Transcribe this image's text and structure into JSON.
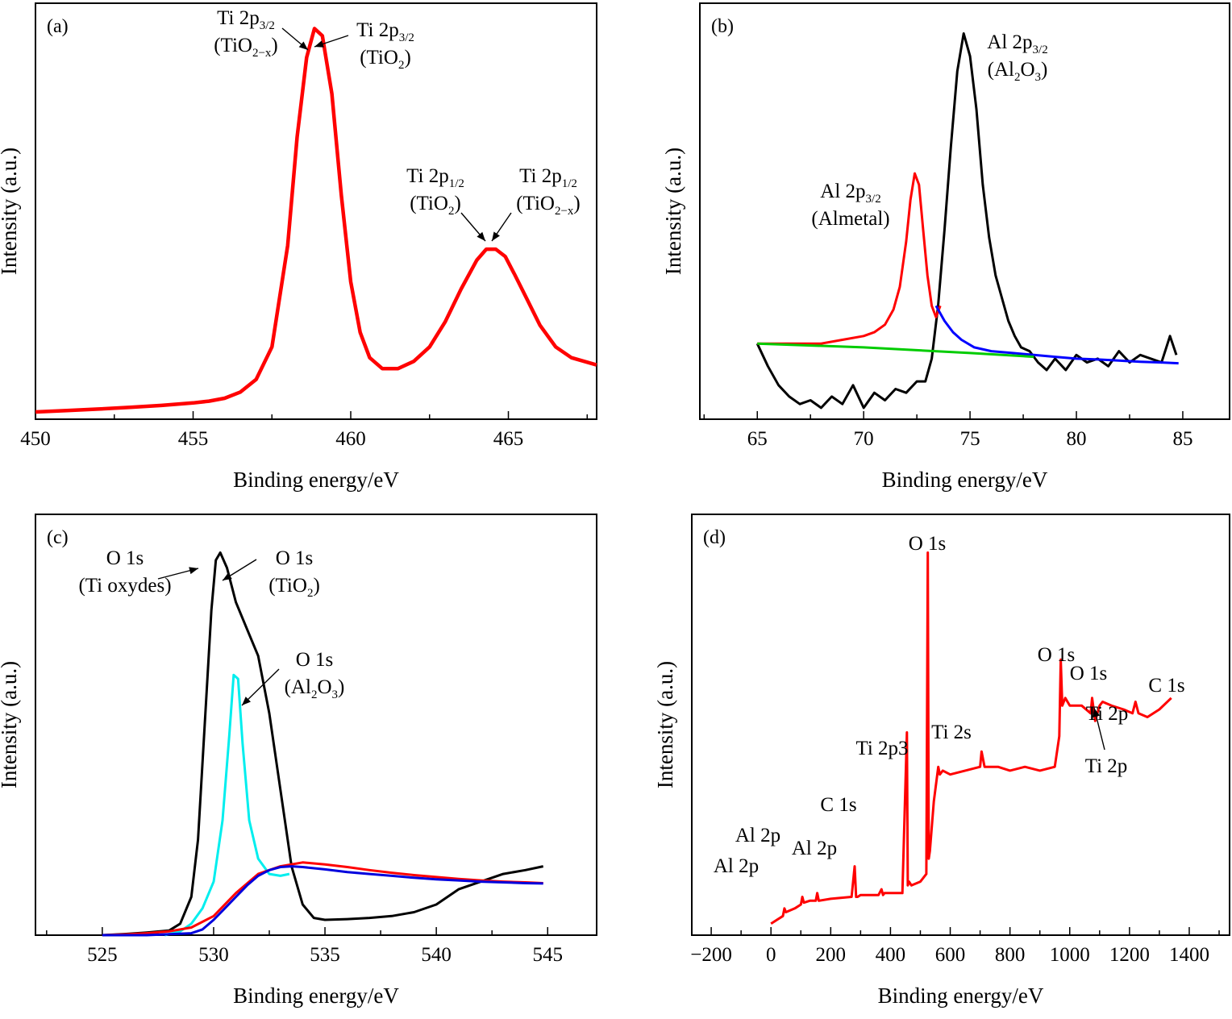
{
  "chart_data": [
    {
      "id": "a",
      "panel_label": "(a)",
      "type": "line",
      "xlabel": "Binding energy/eV",
      "ylabel": "Intensity (a.u.)",
      "xlim": [
        450,
        467.8
      ],
      "ylim": [
        0,
        1.15
      ],
      "xticks": [
        450,
        455,
        460,
        465
      ],
      "series": [
        {
          "color": "#ff0000",
          "x": [
            450,
            451,
            452,
            453,
            454,
            455,
            455.5,
            456,
            456.5,
            457,
            457.5,
            458,
            458.3,
            458.6,
            458.85,
            459.1,
            459.4,
            459.7,
            460,
            460.3,
            460.6,
            461,
            461.5,
            462,
            462.5,
            463,
            463.5,
            464,
            464.3,
            464.6,
            464.9,
            465.2,
            465.6,
            466,
            466.5,
            467,
            467.8
          ],
          "y": [
            0.02,
            0.024,
            0.028,
            0.033,
            0.038,
            0.045,
            0.05,
            0.058,
            0.075,
            0.11,
            0.2,
            0.48,
            0.78,
            1.0,
            1.08,
            1.06,
            0.9,
            0.62,
            0.38,
            0.24,
            0.17,
            0.14,
            0.14,
            0.16,
            0.2,
            0.27,
            0.36,
            0.44,
            0.47,
            0.47,
            0.45,
            0.4,
            0.33,
            0.26,
            0.2,
            0.17,
            0.15
          ]
        }
      ],
      "annotations": [
        {
          "main": "Ti 2p",
          "sub": "3/2",
          "line2": "(TiO",
          "line2_sub": "2−x",
          "line2_end": ")",
          "x": 458.75,
          "y": 1.08
        },
        {
          "main": "Ti 2p",
          "sub": "3/2",
          "line2": "(TiO",
          "line2_sub": "2",
          "line2_end": ")",
          "x": 459.0,
          "y": 1.07
        },
        {
          "main": "Ti 2p",
          "sub": "1/2",
          "line2": "(TiO",
          "line2_sub": "2",
          "line2_end": ")",
          "x": 464.55,
          "y": 0.47
        },
        {
          "main": "Ti 2p",
          "sub": "1/2",
          "line2": "(TiO",
          "line2_sub": "2−x",
          "line2_end": ")",
          "x": 464.75,
          "y": 0.465
        }
      ]
    },
    {
      "id": "b",
      "panel_label": "(b)",
      "type": "line",
      "xlabel": "Binding energy/eV",
      "ylabel": "Intensity (a.u.)",
      "xlim": [
        62.3,
        87.2
      ],
      "ylim": [
        0,
        1.1
      ],
      "xticks": [
        65,
        70,
        75,
        80,
        85
      ],
      "series": [
        {
          "color": "#000000",
          "x": [
            65,
            65.5,
            66,
            66.5,
            67,
            67.5,
            68,
            68.5,
            69,
            69.5,
            70,
            70.5,
            71,
            71.5,
            72,
            72.5,
            72.9,
            73.2,
            73.5,
            73.8,
            74.1,
            74.4,
            74.7,
            75.0,
            75.3,
            75.6,
            75.9,
            76.2,
            76.5,
            76.8,
            77.1,
            77.4,
            77.8,
            78.2,
            78.6,
            79,
            79.5,
            80,
            80.5,
            81,
            81.5,
            82,
            82.5,
            83,
            83.5,
            84,
            84.4,
            84.7
          ],
          "y": [
            0.2,
            0.14,
            0.09,
            0.06,
            0.04,
            0.05,
            0.03,
            0.06,
            0.04,
            0.09,
            0.03,
            0.07,
            0.05,
            0.08,
            0.07,
            0.1,
            0.1,
            0.16,
            0.3,
            0.5,
            0.72,
            0.92,
            1.02,
            0.96,
            0.82,
            0.62,
            0.48,
            0.38,
            0.32,
            0.26,
            0.22,
            0.19,
            0.18,
            0.15,
            0.13,
            0.16,
            0.13,
            0.17,
            0.15,
            0.16,
            0.14,
            0.18,
            0.15,
            0.17,
            0.16,
            0.15,
            0.22,
            0.17
          ]
        },
        {
          "color": "#ff0000",
          "x": [
            65,
            66,
            67,
            68,
            69,
            70,
            70.5,
            71,
            71.4,
            71.7,
            72,
            72.2,
            72.4,
            72.6,
            72.8,
            73,
            73.2,
            73.4,
            73.6
          ],
          "y": [
            0.2,
            0.2,
            0.2,
            0.2,
            0.21,
            0.22,
            0.23,
            0.25,
            0.29,
            0.35,
            0.47,
            0.58,
            0.65,
            0.62,
            0.5,
            0.38,
            0.3,
            0.27,
            0.3
          ]
        },
        {
          "color": "#0000ff",
          "x": [
            73.4,
            73.8,
            74.2,
            74.6,
            75.2,
            76,
            77,
            78,
            79,
            80,
            81,
            82,
            83,
            84,
            84.8
          ],
          "y": [
            0.3,
            0.26,
            0.23,
            0.21,
            0.19,
            0.18,
            0.175,
            0.17,
            0.165,
            0.16,
            0.158,
            0.155,
            0.152,
            0.15,
            0.148
          ]
        },
        {
          "color": "#00cc00",
          "x": [
            65,
            70,
            75,
            78
          ],
          "y": [
            0.2,
            0.19,
            0.175,
            0.165
          ]
        }
      ],
      "annotations": [
        {
          "main": "Al 2p",
          "sub": "3/2",
          "line2": "(Al",
          "line2_sub": "2",
          "line2_mid": "O",
          "line2_sub2": "3",
          "line2_end": ")"
        },
        {
          "main": "Al 2p",
          "sub": "3/2",
          "line2": "(Almetal)"
        }
      ]
    },
    {
      "id": "c",
      "panel_label": "(c)",
      "type": "line",
      "xlabel": "Binding energy/eV",
      "ylabel": "Intensity (a.u.)",
      "xlim": [
        522,
        547.2
      ],
      "ylim": [
        0,
        1.1
      ],
      "xticks": [
        525,
        530,
        535,
        540,
        545
      ],
      "series": [
        {
          "color": "#000000",
          "x": [
            525,
            526,
            527,
            528,
            528.5,
            529,
            529.3,
            529.6,
            529.9,
            530.1,
            530.3,
            530.6,
            531,
            531.5,
            532,
            532.5,
            533,
            533.5,
            534,
            534.5,
            535,
            536,
            537,
            538,
            539,
            540,
            541,
            542,
            543,
            544,
            544.8
          ],
          "y": [
            0.0,
            0.003,
            0.007,
            0.012,
            0.03,
            0.1,
            0.25,
            0.55,
            0.85,
            0.98,
            1.0,
            0.96,
            0.87,
            0.8,
            0.73,
            0.58,
            0.38,
            0.18,
            0.08,
            0.045,
            0.04,
            0.042,
            0.045,
            0.05,
            0.06,
            0.08,
            0.12,
            0.14,
            0.16,
            0.17,
            0.18
          ]
        },
        {
          "color": "#00eeee",
          "x": [
            527.8,
            528.5,
            529,
            529.5,
            530,
            530.4,
            530.7,
            530.9,
            531.1,
            531.3,
            531.6,
            532,
            532.5,
            533,
            533.4
          ],
          "y": [
            0.0,
            0.01,
            0.03,
            0.07,
            0.14,
            0.3,
            0.52,
            0.68,
            0.67,
            0.5,
            0.3,
            0.2,
            0.16,
            0.155,
            0.16
          ]
        },
        {
          "color": "#ff0000",
          "x": [
            525,
            526,
            527,
            528,
            529,
            530,
            531,
            532,
            533,
            534,
            535,
            536,
            537,
            538,
            539,
            540,
            541,
            542,
            543,
            544,
            544.8
          ],
          "y": [
            0.0,
            0.002,
            0.005,
            0.01,
            0.02,
            0.05,
            0.11,
            0.16,
            0.18,
            0.19,
            0.185,
            0.178,
            0.17,
            0.163,
            0.157,
            0.152,
            0.147,
            0.143,
            0.14,
            0.138,
            0.136
          ]
        },
        {
          "color": "#0000dd",
          "x": [
            525,
            527,
            529,
            529.5,
            530,
            530.5,
            531,
            531.5,
            532,
            532.5,
            533,
            533.5,
            534,
            535,
            536,
            537,
            538,
            539,
            540,
            541,
            542,
            543,
            544,
            544.8
          ],
          "y": [
            0.0,
            0.0,
            0.005,
            0.015,
            0.04,
            0.07,
            0.1,
            0.13,
            0.155,
            0.17,
            0.178,
            0.18,
            0.178,
            0.172,
            0.165,
            0.16,
            0.155,
            0.15,
            0.146,
            0.143,
            0.14,
            0.138,
            0.136,
            0.135
          ]
        }
      ],
      "annotations": [
        {
          "main": "O 1s",
          "line2": "(Ti oxydes)"
        },
        {
          "main": "O 1s",
          "line2": "(TiO",
          "line2_sub": "2",
          "line2_end": ")"
        },
        {
          "main": "O 1s",
          "line2": "(Al",
          "line2_sub": "2",
          "line2_mid": "O",
          "line2_sub2": "3",
          "line2_end": ")"
        }
      ]
    },
    {
      "id": "d",
      "panel_label": "(d)",
      "type": "line",
      "xlabel": "Binding energy/eV",
      "ylabel": "Intensity (a.u.)",
      "xlim": [
        -265,
        1535
      ],
      "ylim": [
        0,
        1.1
      ],
      "xticks": [
        -200,
        0,
        200,
        400,
        600,
        800,
        1000,
        1200,
        1400
      ],
      "series": [
        {
          "color": "#ff0000",
          "x": [
            0,
            20,
            40,
            45,
            50,
            80,
            100,
            105,
            110,
            130,
            150,
            155,
            160,
            200,
            270,
            280,
            285,
            290,
            300,
            360,
            370,
            375,
            380,
            440,
            455,
            458,
            462,
            470,
            500,
            520,
            525,
            528,
            532,
            545,
            560,
            565,
            575,
            600,
            650,
            700,
            705,
            715,
            760,
            800,
            850,
            900,
            950,
            965,
            970,
            975,
            985,
            1000,
            1040,
            1070,
            1075,
            1085,
            1100,
            1110,
            1140,
            1180,
            1210,
            1220,
            1230,
            1260,
            1300,
            1340
          ],
          "y": [
            0.03,
            0.04,
            0.05,
            0.07,
            0.06,
            0.07,
            0.08,
            0.1,
            0.085,
            0.09,
            0.09,
            0.11,
            0.09,
            0.095,
            0.1,
            0.18,
            0.1,
            0.1,
            0.105,
            0.105,
            0.12,
            0.105,
            0.11,
            0.11,
            0.53,
            0.13,
            0.14,
            0.13,
            0.14,
            0.16,
            1.0,
            0.2,
            0.22,
            0.35,
            0.44,
            0.42,
            0.43,
            0.42,
            0.43,
            0.44,
            0.48,
            0.44,
            0.44,
            0.43,
            0.44,
            0.43,
            0.44,
            0.52,
            0.72,
            0.6,
            0.62,
            0.6,
            0.6,
            0.58,
            0.62,
            0.56,
            0.6,
            0.61,
            0.6,
            0.59,
            0.58,
            0.61,
            0.58,
            0.57,
            0.59,
            0.62
          ]
        }
      ],
      "annotations": [
        {
          "main": "O 1s"
        },
        {
          "main": "O 1s"
        },
        {
          "main": "O 1s"
        },
        {
          "main": "Ti 2p"
        },
        {
          "main": "C 1s"
        },
        {
          "main": "Ti 2s"
        },
        {
          "main": "Ti 2p3"
        },
        {
          "main": "C 1s"
        },
        {
          "main": "Al 2p"
        },
        {
          "main": "Al 2p"
        },
        {
          "main": "Al 2p"
        },
        {
          "main": "Ti 2p"
        }
      ]
    }
  ]
}
